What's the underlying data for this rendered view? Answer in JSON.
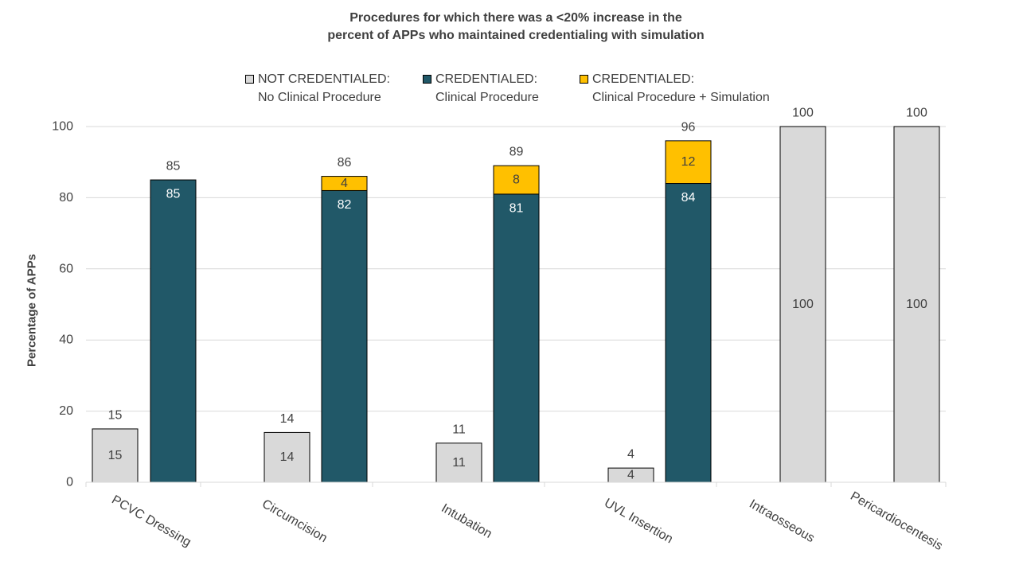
{
  "chart_data": {
    "type": "bar",
    "title_lines": [
      "Procedures for which there was a <20% increase in the",
      "percent of APPs who maintained credentialing with simulation"
    ],
    "ylabel": "Percentage of APPs",
    "ylim": [
      0,
      100
    ],
    "yticks": [
      0,
      20,
      40,
      60,
      80,
      100
    ],
    "grid": true,
    "categories": [
      "PCVC Dressing",
      "Circumcision",
      "Intubation",
      "UVL Insertion",
      "Intraosseous",
      "Pericardiocentesis"
    ],
    "series": [
      {
        "name": "NOT CREDENTIALED: No Clinical Procedure",
        "values": [
          15,
          14,
          11,
          4,
          100,
          100
        ]
      },
      {
        "name": "CREDENTIALED: Clinical Procedure",
        "values": [
          85,
          82,
          81,
          84,
          null,
          null
        ]
      },
      {
        "name": "CREDENTIALED: Clinical Procedure + Simulation",
        "values": [
          null,
          4,
          8,
          12,
          null,
          null
        ]
      }
    ],
    "credentialed_totals": [
      85,
      86,
      89,
      96,
      null,
      null
    ],
    "legend": [
      {
        "line1": "NOT CREDENTIALED:",
        "line2": "No Clinical Procedure",
        "color": "#d9d9d9"
      },
      {
        "line1": "CREDENTIALED:",
        "line2": "Clinical Procedure",
        "color": "#215868"
      },
      {
        "line1": "CREDENTIALED:",
        "line2": "Clinical Procedure + Simulation",
        "color": "#ffc000"
      }
    ],
    "legend_position": "top",
    "colors": {
      "not_credentialed": "#d9d9d9",
      "credentialed": "#215868",
      "simulation": "#ffc000",
      "grid": "#d9d9d9",
      "text": "#404040"
    }
  }
}
